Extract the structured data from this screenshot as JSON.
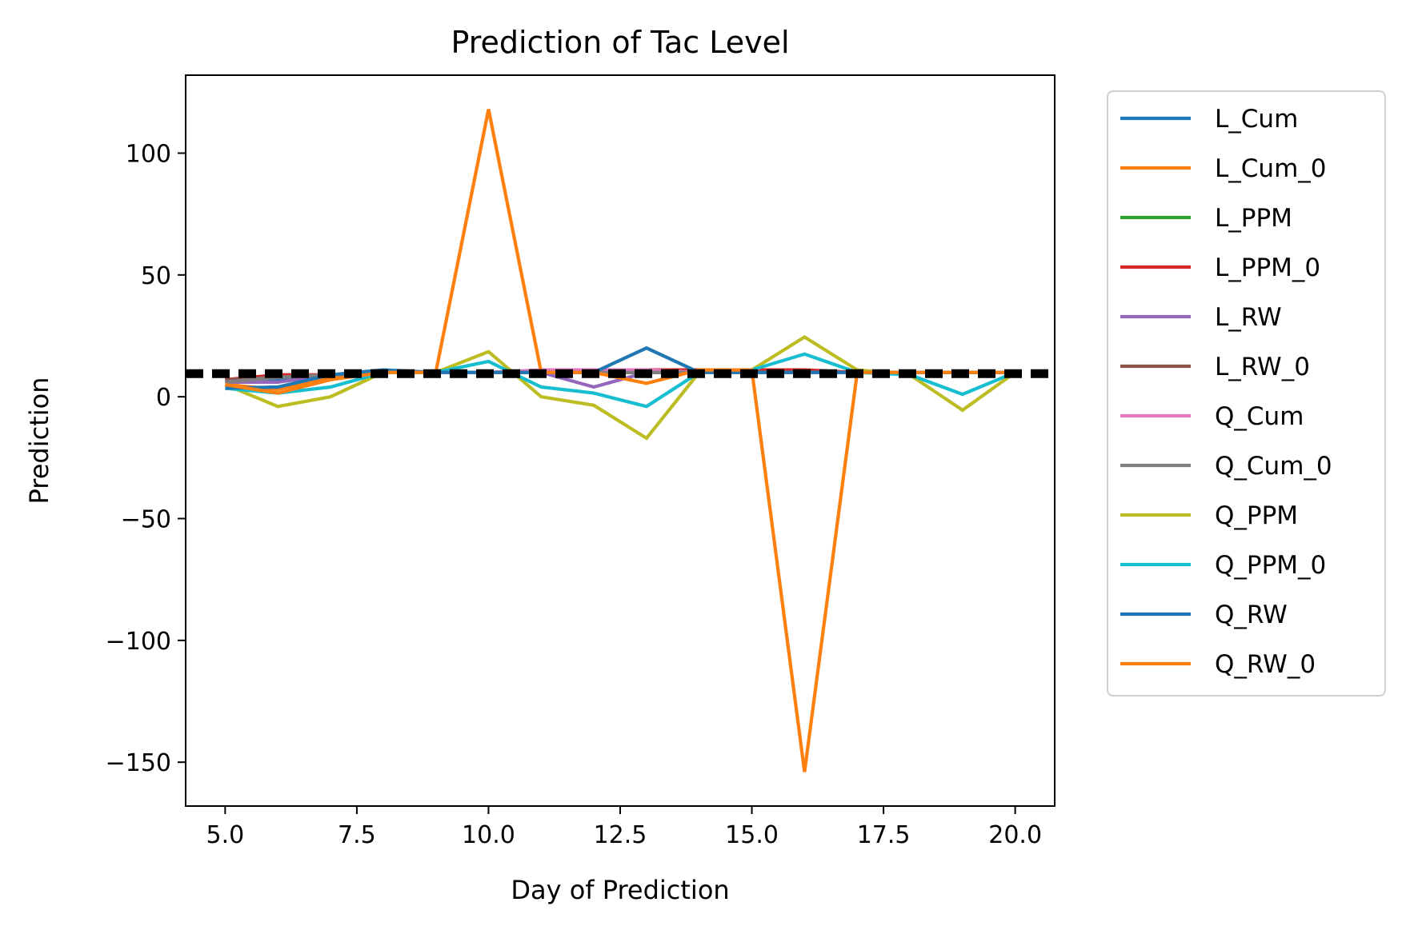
{
  "chart_data": {
    "type": "line",
    "title": "Prediction of Tac Level",
    "xlabel": "Day of Prediction",
    "ylabel": "Prediction",
    "xlim": [
      4.25,
      20.75
    ],
    "ylim": [
      -168,
      132
    ],
    "xticks": [
      5.0,
      7.5,
      10.0,
      12.5,
      15.0,
      17.5,
      20.0
    ],
    "xtick_labels": [
      "5.0",
      "7.5",
      "10.0",
      "12.5",
      "15.0",
      "17.5",
      "20.0"
    ],
    "yticks": [
      100,
      50,
      0,
      -50,
      -100,
      -150
    ],
    "ytick_labels": [
      "100",
      "50",
      "0",
      "−50",
      "−100",
      "−150"
    ],
    "grid": false,
    "legend_position": "outside-right",
    "x": [
      5,
      6,
      7,
      8,
      9,
      10,
      11,
      12,
      13,
      14,
      15,
      16,
      17,
      18,
      19,
      20
    ],
    "reference_line": {
      "y": 9.5,
      "style": "dashed",
      "color": "#000000"
    },
    "series": [
      {
        "name": "L_Cum",
        "color": "#1f77b4",
        "values": [
          6,
          7,
          9,
          10,
          10,
          10,
          10,
          10,
          10,
          10,
          10,
          10,
          10,
          10,
          10,
          10
        ]
      },
      {
        "name": "L_Cum_0",
        "color": "#ff7f0e",
        "values": [
          5,
          3,
          8,
          10,
          10,
          10,
          10,
          10,
          10,
          10,
          10,
          10,
          10,
          10,
          10,
          10
        ]
      },
      {
        "name": "L_PPM",
        "color": "#2ca02c",
        "values": [
          7,
          8,
          9,
          10,
          10,
          10,
          10,
          10,
          10,
          10,
          10,
          10,
          10,
          10,
          10,
          10
        ]
      },
      {
        "name": "L_PPM_0",
        "color": "#d62728",
        "values": [
          7,
          9,
          9,
          10,
          10,
          10,
          10,
          10,
          11,
          11,
          11,
          11,
          10,
          10,
          10,
          10
        ]
      },
      {
        "name": "L_RW",
        "color": "#9467bd",
        "values": [
          6,
          6,
          9,
          10,
          10,
          10,
          10,
          4,
          10,
          10,
          10,
          10,
          10,
          10,
          10,
          10
        ]
      },
      {
        "name": "L_RW_0",
        "color": "#8c564b",
        "values": [
          7,
          8,
          9,
          10,
          10,
          10,
          10,
          10,
          10,
          10,
          10,
          10,
          10,
          10,
          10,
          10
        ]
      },
      {
        "name": "Q_Cum",
        "color": "#e377c2",
        "values": [
          6,
          8,
          9,
          10,
          10,
          10,
          11,
          11,
          11,
          10,
          10,
          10,
          10,
          10,
          10,
          10
        ]
      },
      {
        "name": "Q_Cum_0",
        "color": "#7f7f7f",
        "values": [
          6,
          8,
          9,
          10,
          10,
          10,
          10,
          10,
          10,
          10,
          10,
          10,
          10,
          10,
          10,
          10
        ]
      },
      {
        "name": "Q_PPM",
        "color": "#bcbd22",
        "values": [
          5,
          -4,
          0,
          10,
          10,
          18.5,
          0,
          -3.5,
          -17,
          10,
          11,
          24.5,
          11,
          9,
          -5.5,
          10
        ]
      },
      {
        "name": "Q_PPM_0",
        "color": "#17becf",
        "values": [
          3.5,
          1.5,
          4,
          10,
          10,
          14.5,
          4,
          1.5,
          -4,
          10,
          11,
          17.5,
          10,
          9,
          1,
          10
        ]
      },
      {
        "name": "Q_RW",
        "color": "#1f77b4",
        "values": [
          3.5,
          4,
          9,
          11,
          10,
          10,
          10,
          10,
          20,
          10,
          10,
          10,
          10,
          10,
          10,
          10
        ]
      },
      {
        "name": "Q_RW_0",
        "color": "#ff7f0e",
        "values": [
          5,
          1.5,
          7,
          10,
          10,
          118,
          10,
          10,
          5.5,
          11,
          11,
          -154,
          10,
          10,
          10,
          10
        ]
      }
    ]
  }
}
